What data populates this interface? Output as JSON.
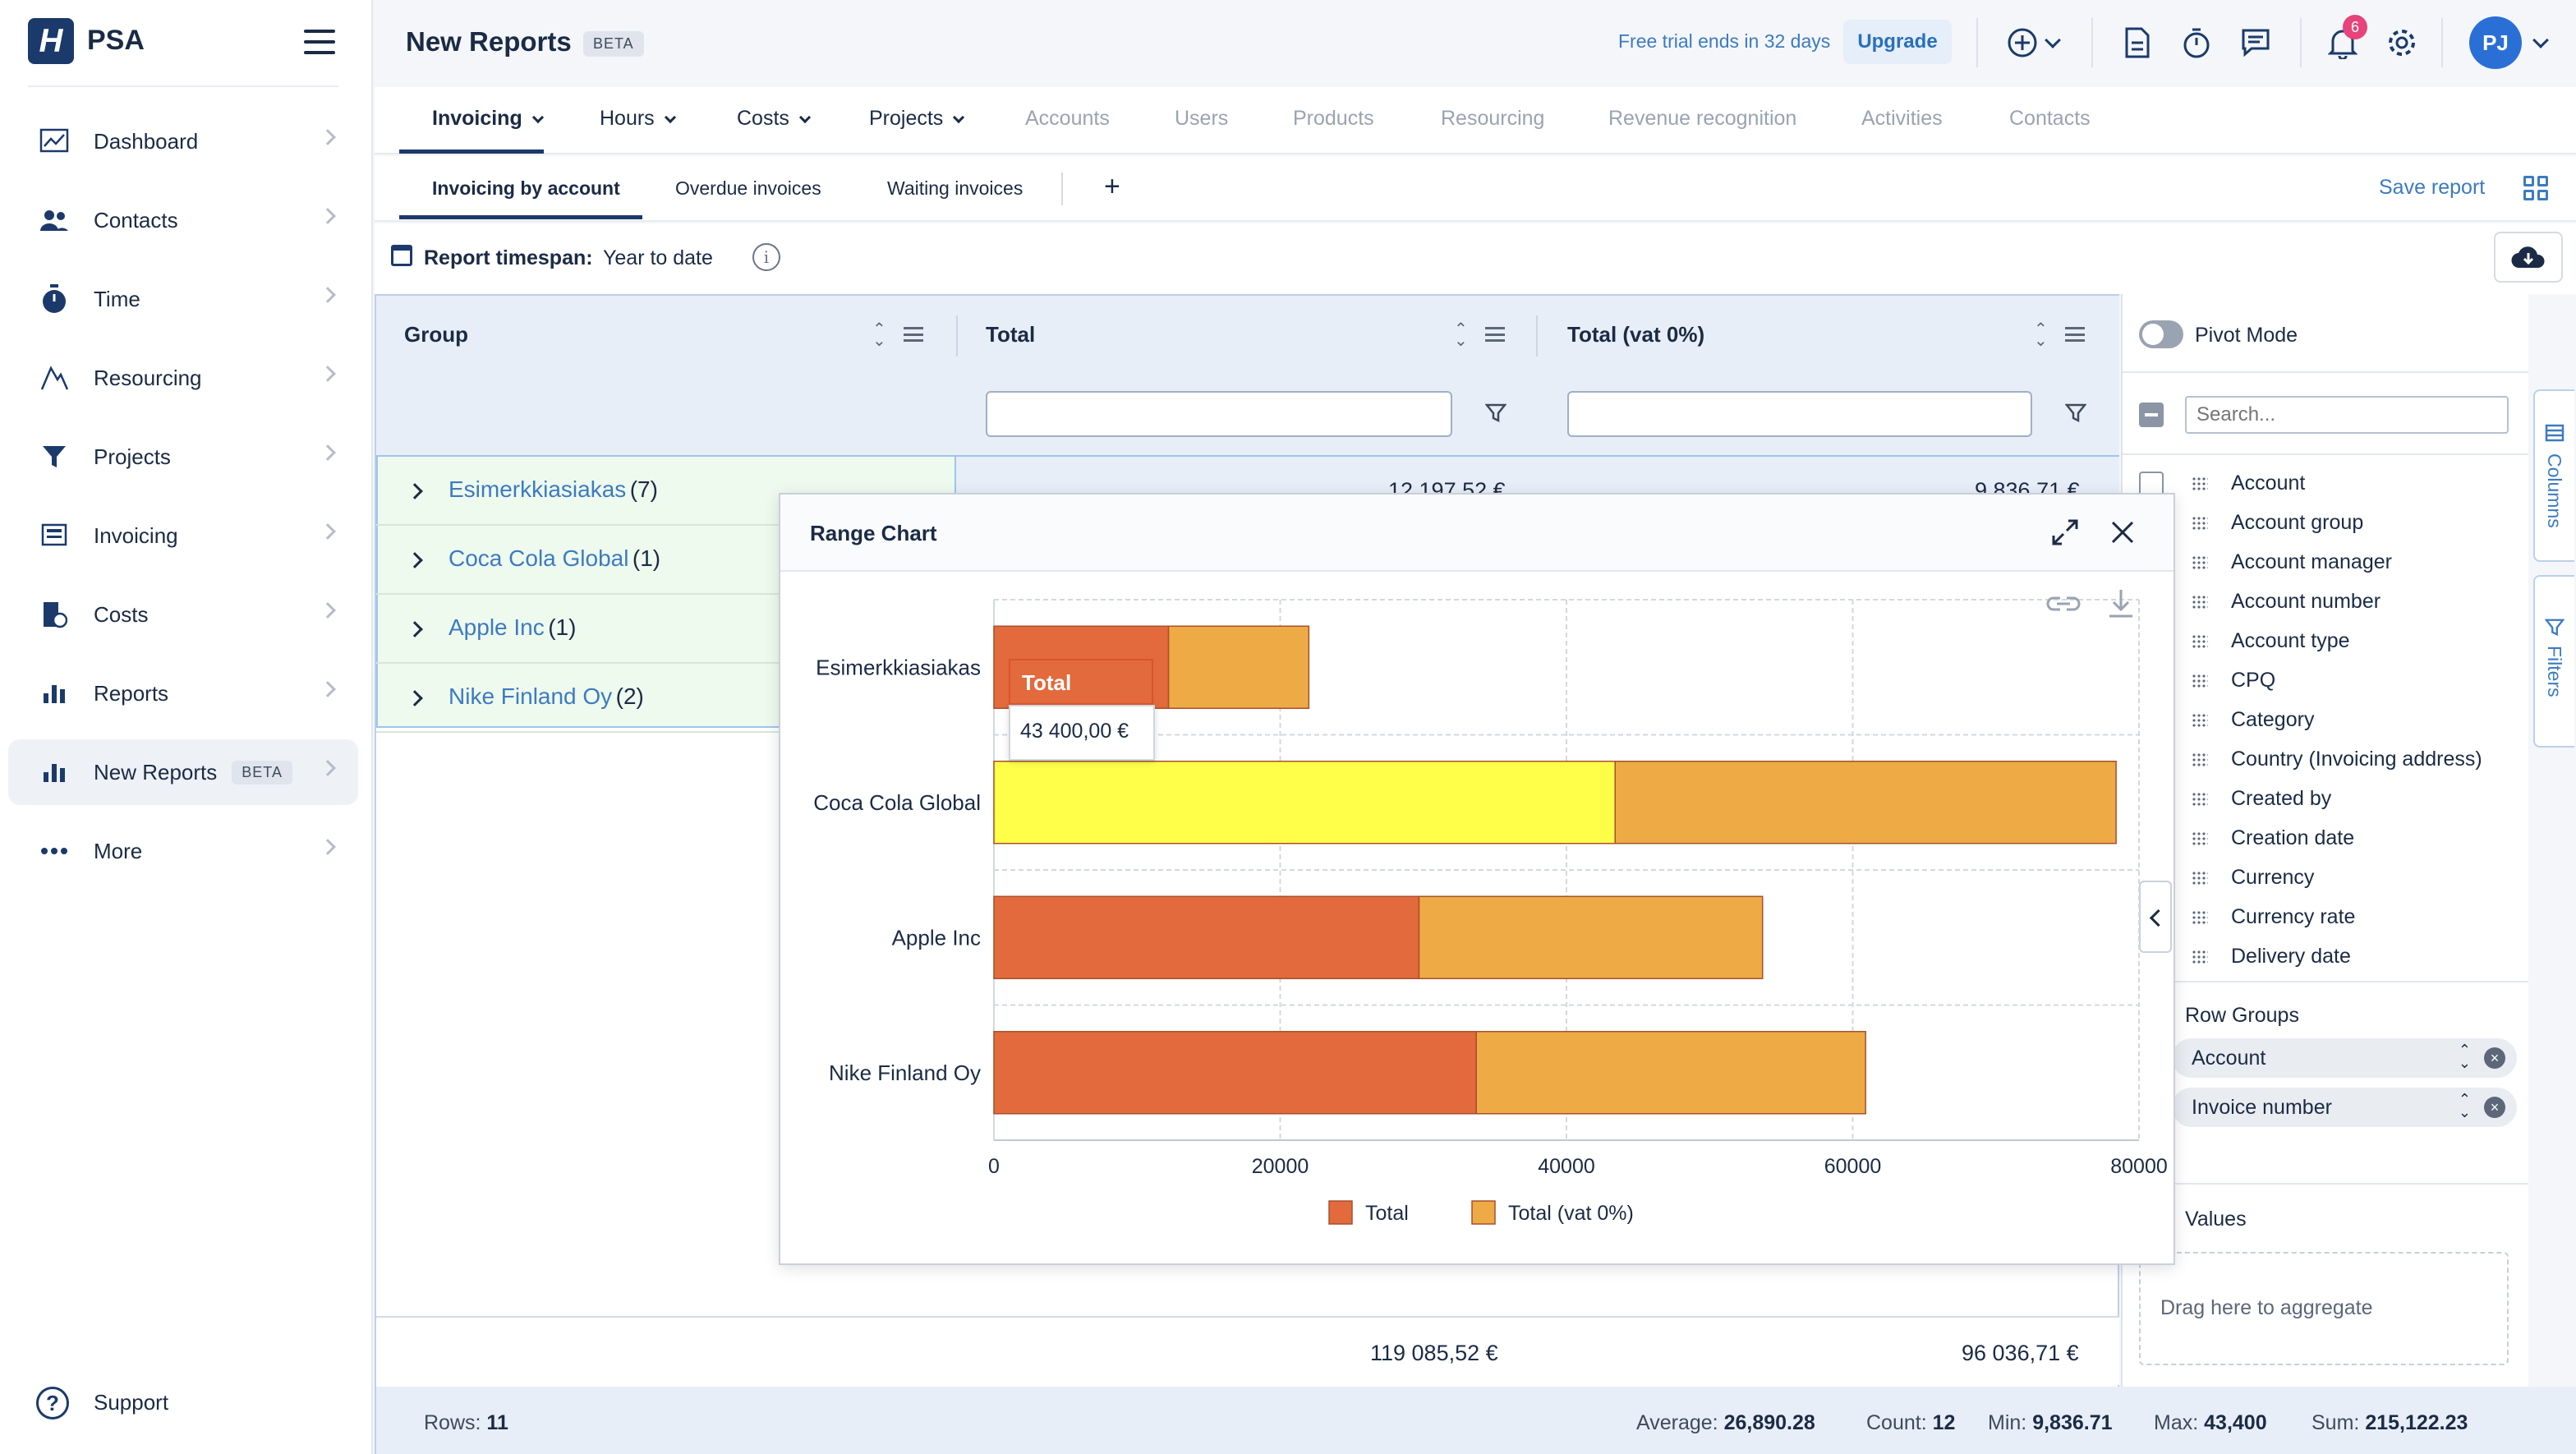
{
  "app": {
    "logo_letter": "H",
    "name": "PSA"
  },
  "sidebar": {
    "items": [
      {
        "label": "Dashboard",
        "icon": "chart-line-icon"
      },
      {
        "label": "Contacts",
        "icon": "people-icon"
      },
      {
        "label": "Time",
        "icon": "stopwatch-icon"
      },
      {
        "label": "Resourcing",
        "icon": "resourcing-icon"
      },
      {
        "label": "Projects",
        "icon": "funnel-icon"
      },
      {
        "label": "Invoicing",
        "icon": "invoice-icon"
      },
      {
        "label": "Costs",
        "icon": "costs-icon"
      },
      {
        "label": "Reports",
        "icon": "bar-chart-icon"
      },
      {
        "label": "New Reports",
        "icon": "bar-chart-icon",
        "badge": "BETA",
        "active": true
      },
      {
        "label": "More",
        "icon": "dots-icon"
      }
    ],
    "support_label": "Support"
  },
  "header": {
    "title": "New Reports",
    "title_badge": "BETA",
    "trial_text": "Free trial ends in 32 days",
    "upgrade_label": "Upgrade",
    "notification_count": "6",
    "avatar_initials": "PJ"
  },
  "tabs_primary": [
    {
      "label": "Invoicing",
      "dropdown": true,
      "active": true
    },
    {
      "label": "Hours",
      "dropdown": true
    },
    {
      "label": "Costs",
      "dropdown": true
    },
    {
      "label": "Projects",
      "dropdown": true
    },
    {
      "label": "Accounts"
    },
    {
      "label": "Users"
    },
    {
      "label": "Products"
    },
    {
      "label": "Resourcing"
    },
    {
      "label": "Revenue recognition"
    },
    {
      "label": "Activities"
    },
    {
      "label": "Contacts"
    }
  ],
  "tabs_secondary": [
    {
      "label": "Invoicing by account",
      "active": true
    },
    {
      "label": "Overdue invoices"
    },
    {
      "label": "Waiting invoices"
    }
  ],
  "save_report_label": "Save report",
  "timespan": {
    "label": "Report timespan:",
    "value": "Year to date"
  },
  "grid": {
    "columns": [
      "Group",
      "Total",
      "Total (vat 0%)"
    ],
    "rows": [
      {
        "name": "Esimerkkiasiakas",
        "count": "(7)",
        "total": "12 197,52 €",
        "total_vat0": "9 836,71 €"
      },
      {
        "name": "Coca Cola Global",
        "count": "(1)"
      },
      {
        "name": "Apple Inc",
        "count": "(1)"
      },
      {
        "name": "Nike Finland Oy",
        "count": "(2)"
      }
    ],
    "footer": {
      "total": "119 085,52 €",
      "total_vat0": "96 036,71 €"
    },
    "status": {
      "rows_label": "Rows:",
      "rows_value": "11",
      "average_label": "Average:",
      "average_value": "26,890.28",
      "count_label": "Count:",
      "count_value": "12",
      "min_label": "Min:",
      "min_value": "9,836.71",
      "max_label": "Max:",
      "max_value": "43,400",
      "sum_label": "Sum:",
      "sum_value": "215,122.23"
    }
  },
  "side_panel": {
    "pivot_mode_label": "Pivot Mode",
    "search_placeholder": "Search...",
    "columns": [
      "Account",
      "Account group",
      "Account manager",
      "Account number",
      "Account type",
      "CPQ",
      "Category",
      "Country (Invoicing address)",
      "Created by",
      "Creation date",
      "Currency",
      "Currency rate",
      "Delivery date"
    ],
    "row_groups_label": "Row Groups",
    "row_groups": [
      "Account",
      "Invoice number"
    ],
    "values_label": "Values",
    "values_dropzone": "Drag here to aggregate",
    "vertical_tabs": [
      "Columns",
      "Filters"
    ]
  },
  "chart_popup": {
    "title": "Range Chart",
    "tooltip": {
      "title": "Total",
      "value": "43 400,00 €"
    }
  },
  "chart_data": {
    "type": "bar",
    "orientation": "horizontal",
    "stacked": true,
    "title": "",
    "categories": [
      "Esimerkkiasiakas",
      "Coca Cola Global",
      "Apple Inc",
      "Nike Finland Oy"
    ],
    "series": [
      {
        "name": "Total",
        "values": [
          12200,
          43400,
          29700,
          33700
        ],
        "color": "#e26a3c"
      },
      {
        "name": "Total (vat 0%)",
        "values": [
          9800,
          35000,
          24000,
          27200
        ],
        "color": "#eeaa44"
      }
    ],
    "highlight": {
      "series": 0,
      "category": 1,
      "color": "#ffff4a"
    },
    "xlim": [
      0,
      80000
    ],
    "xticks": [
      "0",
      "20000",
      "40000",
      "60000",
      "80000"
    ],
    "grid": true,
    "legend_position": "bottom"
  }
}
